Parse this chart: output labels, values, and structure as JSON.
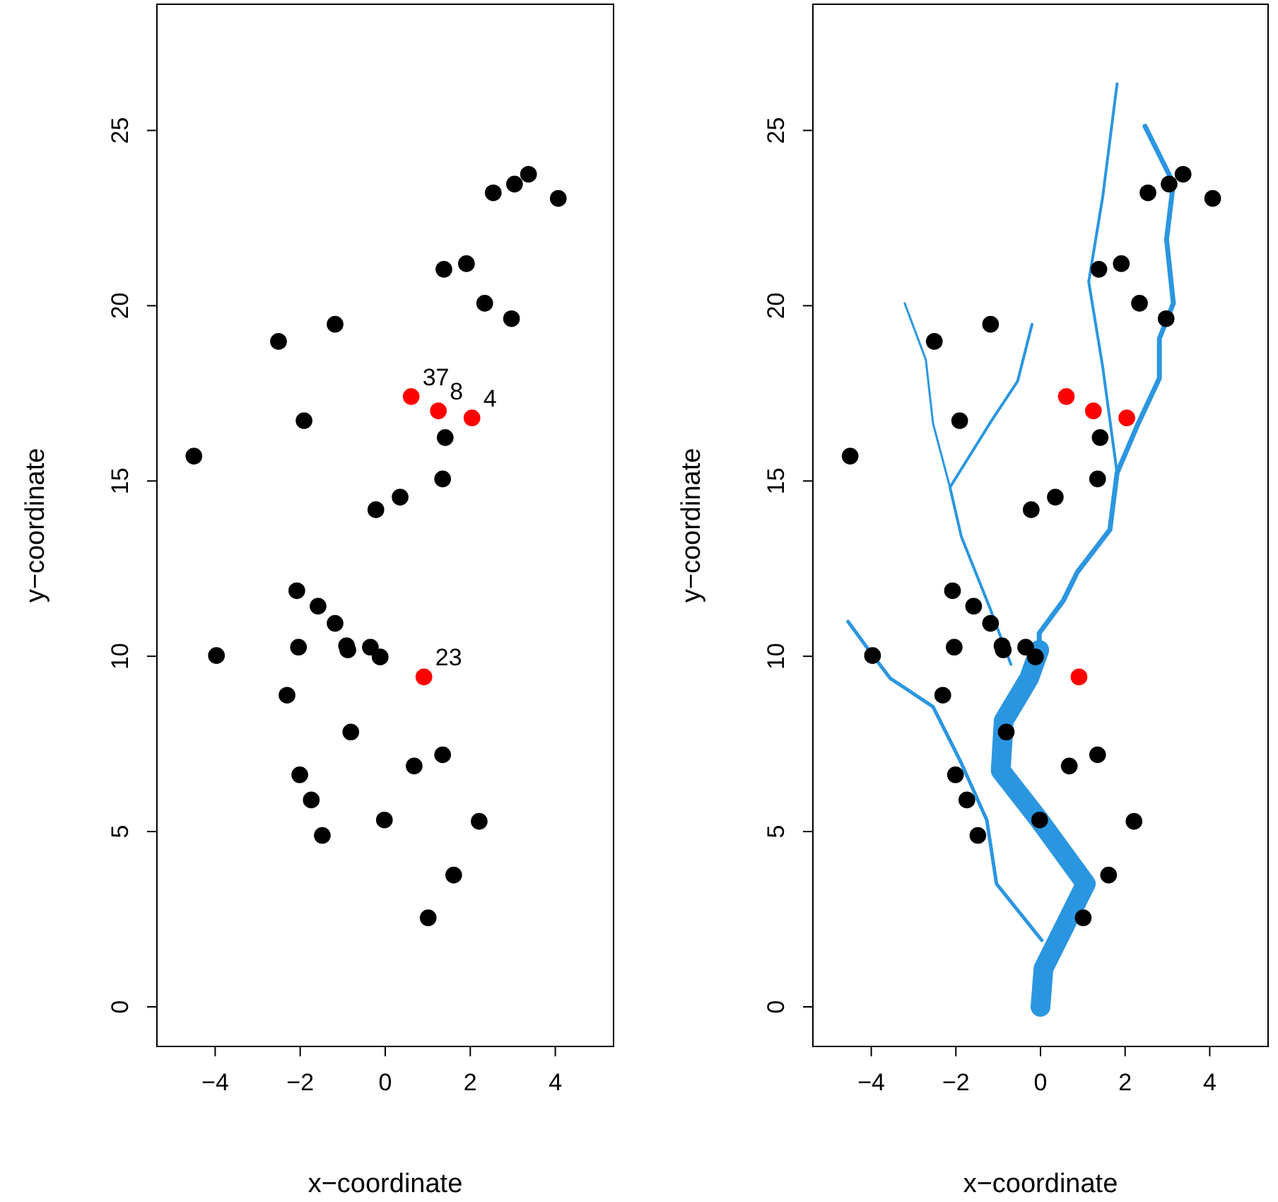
{
  "chart_data": [
    {
      "type": "scatter",
      "xlabel": "x−coordinate",
      "ylabel": "y−coordinate",
      "xlim": [
        -5.37,
        5.37
      ],
      "ylim": [
        -1.13,
        28.6
      ],
      "xticks": [
        -4,
        -2,
        0,
        2,
        4
      ],
      "yticks": [
        0,
        5,
        10,
        15,
        20,
        25
      ],
      "grid": false,
      "marker": "circle",
      "series": [
        {
          "color": "#000000",
          "x": [
            4.07,
            3.37,
            3.04,
            2.54,
            1.91,
            1.38,
            2.34,
            2.97,
            -2.51,
            -1.18,
            -1.91,
            -4.5,
            1.41,
            1.35,
            0.35,
            -0.22,
            -2.08,
            -1.58,
            -1.18,
            -2.04,
            -3.97,
            -0.91,
            -0.88,
            -0.35,
            -0.12,
            -2.31,
            -0.81,
            0.68,
            1.35,
            -2.01,
            -1.74,
            -1.48,
            -0.02,
            2.21,
            1.61,
            1.01
          ],
          "values": [
            23.06,
            23.75,
            23.47,
            23.22,
            21.2,
            21.04,
            20.07,
            19.63,
            18.98,
            19.47,
            16.72,
            15.71,
            16.24,
            15.06,
            14.54,
            14.18,
            11.87,
            11.43,
            10.94,
            10.26,
            10.02,
            10.3,
            10.18,
            10.26,
            9.98,
            8.89,
            7.84,
            6.87,
            7.19,
            6.62,
            5.9,
            4.89,
            5.33,
            5.29,
            3.76,
            2.54
          ]
        },
        {
          "color": "#ff0000",
          "x": [
            0.61,
            1.25,
            2.04,
            0.91
          ],
          "values": [
            17.41,
            17.0,
            16.8,
            9.41
          ]
        }
      ],
      "annotations": [
        {
          "text": "37",
          "x": 0.61,
          "y": 17.41
        },
        {
          "text": "8",
          "x": 1.25,
          "y": 17.0
        },
        {
          "text": "4",
          "x": 2.04,
          "y": 16.8
        },
        {
          "text": "23",
          "x": 0.91,
          "y": 9.41
        }
      ]
    },
    {
      "type": "scatter",
      "xlabel": "x−coordinate",
      "ylabel": "y−coordinate",
      "xlim": [
        -5.38,
        5.38
      ],
      "ylim": [
        -1.13,
        28.6
      ],
      "xticks": [
        -4,
        -2,
        0,
        2,
        4
      ],
      "yticks": [
        0,
        5,
        10,
        15,
        20,
        25
      ],
      "grid": false,
      "marker": "circle",
      "series": [
        {
          "type": "line",
          "marker": "none",
          "color": "#2b96e0",
          "x": [
            0,
            0.07,
            1.07,
            -0.03,
            -0.94,
            -0.87,
            -0.27,
            -0.03
          ],
          "values": [
            0,
            1.09,
            3.51,
            5.33,
            6.74,
            8.16,
            9.37,
            10.18
          ]
        },
        {
          "type": "line",
          "marker": "none",
          "color": "#2b96e0",
          "x": [
            -0.03,
            -0.03,
            0.54,
            0.87,
            1.64,
            1.81,
            2.31,
            2.81,
            2.81,
            3.14,
            2.98,
            3.14,
            2.47
          ],
          "values": [
            10.18,
            10.66,
            11.59,
            12.4,
            13.61,
            15.23,
            16.64,
            17.93,
            19.06,
            20.07,
            21.89,
            23.5,
            25.12
          ]
        },
        {
          "type": "line",
          "marker": "none",
          "color": "#2b96e0",
          "x": [
            0.03,
            -1.04,
            -1.27,
            -1.87,
            -2.54,
            -3.55,
            -4.01,
            -4.55
          ],
          "values": [
            1.9,
            3.51,
            5.33,
            6.95,
            8.56,
            9.37,
            10.1,
            10.99
          ]
        },
        {
          "type": "line",
          "marker": "none",
          "color": "#2b96e0",
          "x": [
            -0.7,
            -1.2,
            -1.87,
            -2.14,
            -1.2,
            -0.54,
            -0.2
          ],
          "values": [
            9.77,
            11.39,
            13.41,
            14.82,
            16.64,
            17.85,
            19.47
          ]
        },
        {
          "type": "line",
          "marker": "none",
          "color": "#2b96e0",
          "x": [
            -2.14,
            -2.54,
            -2.71,
            -3.21
          ],
          "values": [
            14.82,
            16.64,
            18.46,
            20.07
          ]
        },
        {
          "type": "line",
          "marker": "none",
          "color": "#2b96e0",
          "x": [
            1.81,
            1.47,
            1.14,
            1.47,
            1.81
          ],
          "values": [
            15.23,
            18.26,
            20.68,
            23.1,
            26.33
          ]
        },
        {
          "color": "#000000",
          "x": [
            4.07,
            3.37,
            3.04,
            2.54,
            1.91,
            1.38,
            2.34,
            2.97,
            -2.51,
            -1.18,
            -1.91,
            -4.5,
            1.41,
            1.35,
            0.35,
            -0.22,
            -2.08,
            -1.58,
            -1.18,
            -2.04,
            -3.97,
            -0.91,
            -0.88,
            -0.35,
            -0.12,
            -2.31,
            -0.81,
            0.68,
            1.35,
            -2.01,
            -1.74,
            -1.48,
            -0.02,
            2.21,
            1.61,
            1.01
          ],
          "values": [
            23.06,
            23.75,
            23.47,
            23.22,
            21.2,
            21.04,
            20.07,
            19.63,
            18.98,
            19.47,
            16.72,
            15.71,
            16.24,
            15.06,
            14.54,
            14.18,
            11.87,
            11.43,
            10.94,
            10.26,
            10.02,
            10.3,
            10.18,
            10.26,
            9.98,
            8.89,
            7.84,
            6.87,
            7.19,
            6.62,
            5.9,
            4.89,
            5.33,
            5.29,
            3.76,
            2.54
          ]
        },
        {
          "color": "#ff0000",
          "x": [
            0.61,
            1.25,
            2.04,
            0.91
          ],
          "values": [
            17.41,
            17.0,
            16.8,
            9.41
          ]
        }
      ]
    }
  ]
}
